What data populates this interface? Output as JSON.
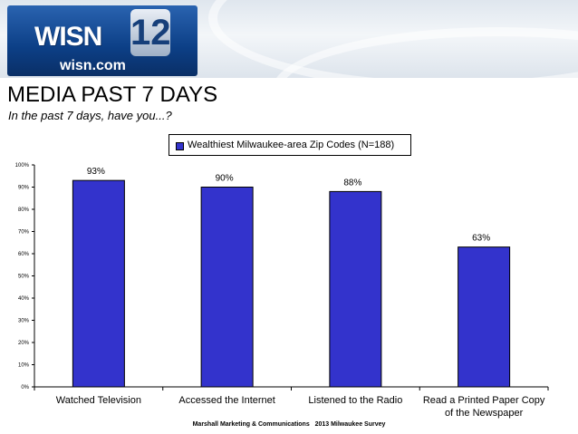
{
  "header": {
    "logo_text": "WISN",
    "logo_number": "12",
    "logo_subtext": "wisn.com"
  },
  "slide": {
    "title": "MEDIA PAST 7 DAYS",
    "subtitle": "In the past 7 days, have you...?",
    "footer": "Marshall Marketing & Communications   2013 Milwaukee Survey"
  },
  "chart_data": {
    "type": "bar",
    "categories": [
      "Watched Television",
      "Accessed the Internet",
      "Listened to the Radio",
      "Read a Printed Paper Copy of the Newspaper"
    ],
    "category_lines": [
      [
        "Watched Television"
      ],
      [
        "Accessed the Internet"
      ],
      [
        "Listened to the Radio"
      ],
      [
        "Read a Printed Paper Copy",
        "of the Newspaper"
      ]
    ],
    "series": [
      {
        "name": "Wealthiest Milwaukee-area Zip Codes (N=188)",
        "values": [
          93,
          90,
          88,
          63
        ],
        "color": "#3333cc"
      }
    ],
    "data_labels": [
      "93%",
      "90%",
      "88%",
      "63%"
    ],
    "ylim": [
      0,
      100
    ],
    "y_ticks": [
      0,
      10,
      20,
      30,
      40,
      50,
      60,
      70,
      80,
      90,
      100
    ],
    "y_tick_labels": [
      "0%",
      "10%",
      "20%",
      "30%",
      "40%",
      "50%",
      "60%",
      "70%",
      "80%",
      "90%",
      "100%"
    ],
    "grid": false,
    "legend_position": "top-center"
  }
}
